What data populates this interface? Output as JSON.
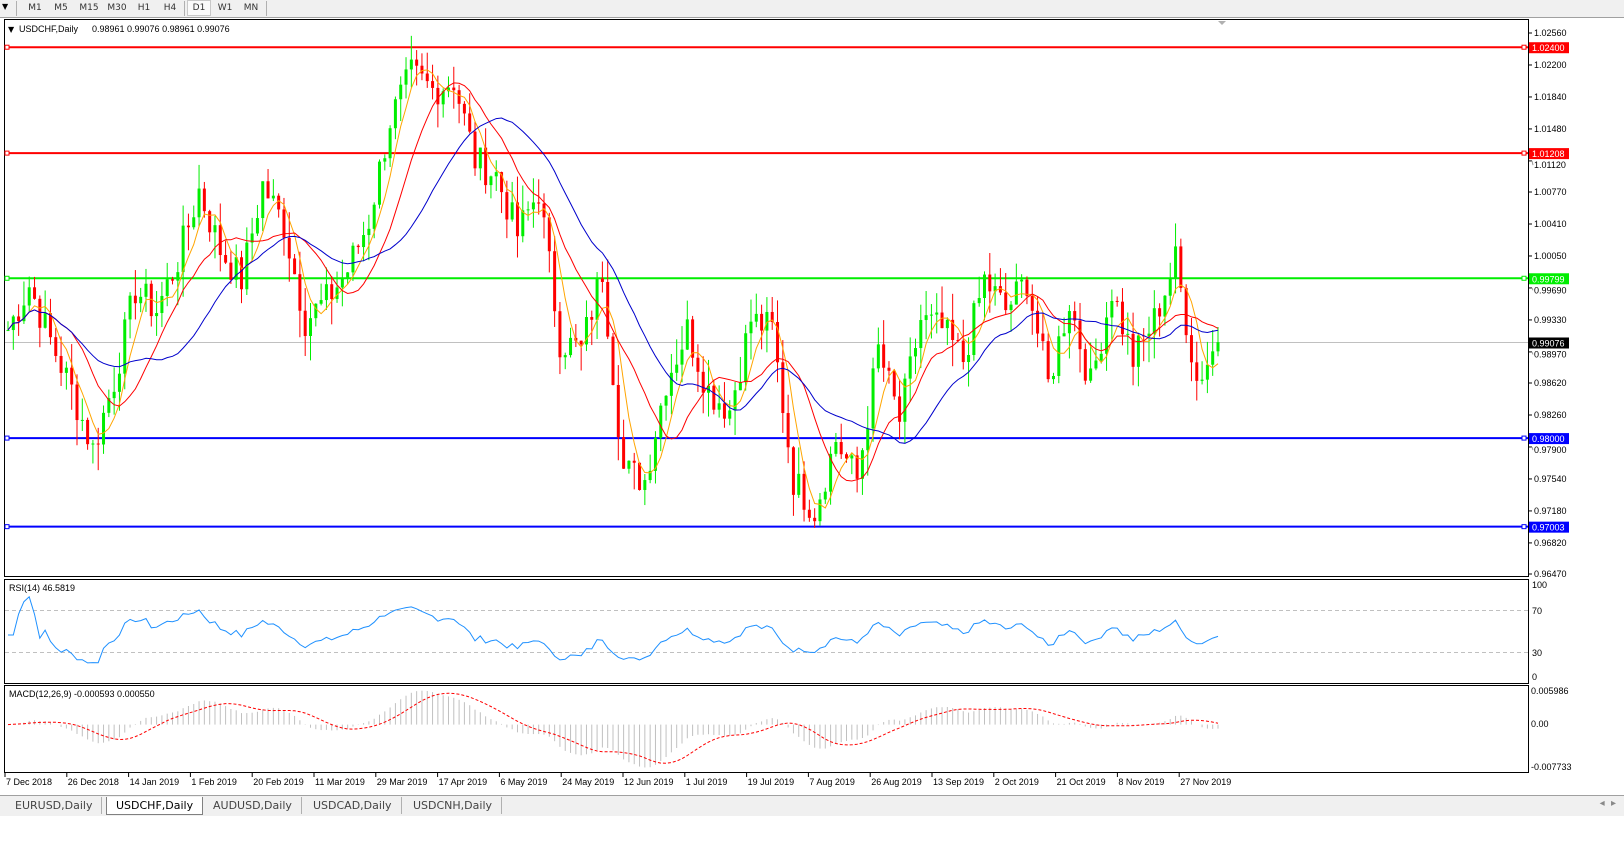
{
  "toolbar": {
    "timeframes": [
      "M1",
      "M5",
      "M15",
      "M30",
      "H1",
      "H4",
      "D1",
      "W1",
      "MN"
    ],
    "active": "D1"
  },
  "chart": {
    "header": "USDCHF,Daily",
    "ohlc": "0.98961 0.99076 0.98961 0.99076",
    "price_labels": [
      "1.02560",
      "1.02200",
      "1.01840",
      "1.01480",
      "1.01120",
      "1.00770",
      "1.00410",
      "1.00050",
      "0.99690",
      "0.99330",
      "0.98970",
      "0.98620",
      "0.98260",
      "0.97900",
      "0.97540",
      "0.97180",
      "0.96820",
      "0.96470"
    ],
    "price_range": [
      0.9647,
      1.0256
    ],
    "levels": [
      {
        "price": 1.024,
        "label": "1.02400",
        "color": "#ff0000"
      },
      {
        "price": 1.01208,
        "label": "1.01208",
        "color": "#ff0000"
      },
      {
        "price": 0.99799,
        "label": "0.99799",
        "color": "#00ee00"
      },
      {
        "price": 0.98,
        "label": "0.98000",
        "color": "#0000ff"
      },
      {
        "price": 0.97003,
        "label": "0.97003",
        "color": "#0000ff"
      }
    ],
    "current_price": {
      "price": 0.99076,
      "label": "0.99076"
    },
    "colors": {
      "bull": "#00ee00",
      "bear": "#ff0000",
      "ma_fast": "#ffa500",
      "ma_mid": "#ff0000",
      "ma_slow": "#0000cc"
    },
    "closes": [
      0.9922,
      0.9972,
      0.991,
      0.9854,
      0.9787,
      0.9865,
      0.9967,
      0.9944,
      1.0,
      1.0079,
      1.0012,
      0.9978,
      1.0085,
      1.004,
      0.9933,
      0.9955,
      0.9989,
      1.0045,
      1.0158,
      1.0209,
      1.0192,
      1.0203,
      1.0113,
      1.0096,
      1.0029,
      1.0079,
      0.991,
      0.9899,
      0.9989,
      0.9764,
      0.9753,
      0.9865,
      0.9922,
      0.9854,
      0.9832,
      0.9933,
      0.9922,
      0.9753,
      0.9719,
      0.9798,
      0.9753,
      0.9899,
      0.982,
      0.9933,
      0.9922,
      0.9888,
      0.9978,
      0.9944,
      0.9978,
      0.986,
      0.9955,
      0.986,
      0.9967,
      0.9888,
      0.9933,
      1.0,
      0.9865,
      0.9908
    ]
  },
  "rsi": {
    "title": "RSI(14) 46.5819",
    "labels": [
      "100",
      "70",
      "30",
      "0"
    ],
    "levels": [
      70,
      30
    ]
  },
  "macd": {
    "title": "MACD(12,26,9) -0.000593 0.000550",
    "labels": [
      "0.005986",
      "0.00",
      "-0.007733"
    ],
    "range": [
      -0.007733,
      0.005986
    ]
  },
  "dates": [
    "7 Dec 2018",
    "26 Dec 2018",
    "14 Jan 2019",
    "1 Feb 2019",
    "20 Feb 2019",
    "11 Mar 2019",
    "29 Mar 2019",
    "17 Apr 2019",
    "6 May 2019",
    "24 May 2019",
    "12 Jun 2019",
    "1 Jul 2019",
    "19 Jul 2019",
    "7 Aug 2019",
    "26 Aug 2019",
    "13 Sep 2019",
    "2 Oct 2019",
    "21 Oct 2019",
    "8 Nov 2019",
    "27 Nov 2019"
  ],
  "tabs": [
    {
      "label": "EURUSD,Daily",
      "active": false
    },
    {
      "label": "USDCHF,Daily",
      "active": true
    },
    {
      "label": "AUDUSD,Daily",
      "active": false
    },
    {
      "label": "USDCAD,Daily",
      "active": false
    },
    {
      "label": "USDCNH,Daily",
      "active": false
    }
  ]
}
